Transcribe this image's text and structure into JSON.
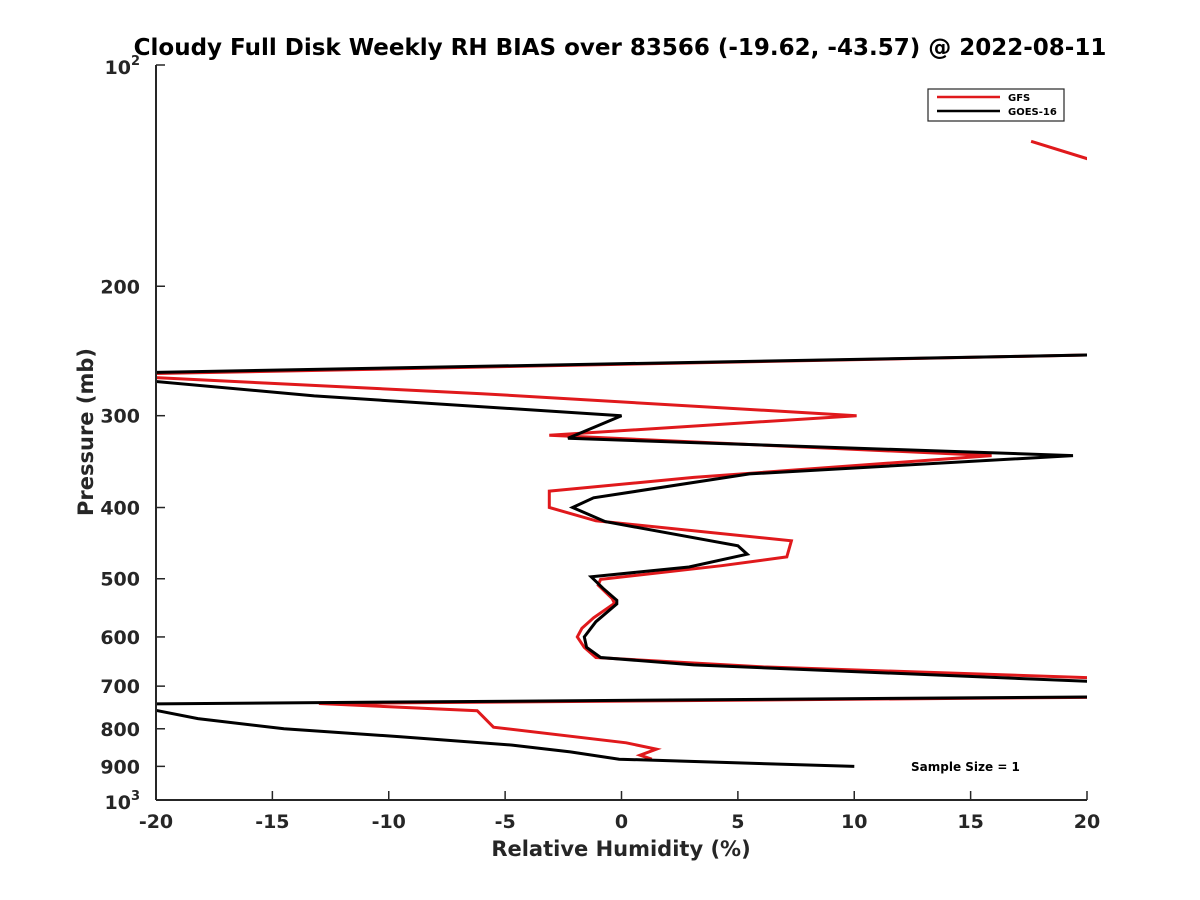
{
  "chart_data": {
    "type": "line",
    "title": "Cloudy Full Disk Weekly RH BIAS over 83566 (-19.62, -43.57) @ 2022-08-11",
    "xlabel": "Relative Humidity (%)",
    "ylabel": "Pressure (mb)",
    "xlim": [
      -20,
      20
    ],
    "ylim": [
      100,
      1000
    ],
    "y_scale": "log",
    "y_reversed": true,
    "grid": false,
    "legend_position": "top-right",
    "x_ticks": [
      -20,
      -15,
      -10,
      -5,
      0,
      5,
      10,
      15,
      20
    ],
    "x_tick_labels": [
      "-20",
      "-15",
      "-10",
      "-5",
      "0",
      "5",
      "10",
      "15",
      "20"
    ],
    "y_ticks": [
      200,
      300,
      400,
      500,
      600,
      700,
      800,
      900
    ],
    "y_tick_labels": [
      "200",
      "300",
      "400",
      "500",
      "600",
      "700",
      "800",
      "900"
    ],
    "y_end_labels": {
      "top": {
        "base": "10",
        "exp": "2"
      },
      "bottom": {
        "base": "10",
        "exp": "3"
      }
    },
    "annotation": "Sample Size = 1",
    "series": [
      {
        "name": "GFS",
        "color": "#e0191c",
        "segments": [
          [
            [
              17.6,
              127
            ],
            [
              20.3,
              135
            ]
          ],
          [
            [
              20.3,
              248
            ],
            [
              -20.3,
              263
            ],
            [
              -20.3,
              266
            ],
            [
              -6.0,
              280
            ],
            [
              10.1,
              300
            ],
            [
              -3.1,
              319
            ],
            [
              15.9,
              340
            ],
            [
              3.1,
              364
            ],
            [
              -3.1,
              380
            ],
            [
              -3.1,
              400
            ],
            [
              -1.1,
              417
            ],
            [
              7.3,
              444
            ],
            [
              7.1,
              467
            ],
            [
              4.3,
              480
            ],
            [
              -0.9,
              501
            ],
            [
              -1.0,
              510
            ],
            [
              -0.4,
              532
            ],
            [
              -0.3,
              540
            ],
            [
              -1.2,
              565
            ],
            [
              -1.7,
              584
            ],
            [
              -1.9,
              600
            ],
            [
              -1.6,
              620
            ],
            [
              -1.1,
              640
            ],
            [
              6.1,
              659
            ],
            [
              20.3,
              682
            ]
          ],
          [
            [
              20.3,
              725
            ],
            [
              -13.0,
              739
            ],
            [
              -6.2,
              756
            ],
            [
              -5.5,
              796
            ],
            [
              0.2,
              836
            ],
            [
              1.5,
              853
            ],
            [
              0.8,
              869
            ],
            [
              1.3,
              880
            ]
          ]
        ]
      },
      {
        "name": "GOES-16",
        "color": "#000000",
        "segments": [
          [
            [
              20.3,
              248
            ],
            [
              -20.3,
              262
            ]
          ],
          [
            [
              -20.3,
              269
            ],
            [
              -13.2,
              282
            ],
            [
              0.0,
              300
            ],
            [
              -2.3,
              322
            ],
            [
              19.4,
              340
            ],
            [
              5.5,
              360
            ],
            [
              -1.2,
              388
            ],
            [
              -2.1,
              400
            ],
            [
              -0.7,
              418
            ],
            [
              5.0,
              451
            ],
            [
              5.4,
              463
            ],
            [
              2.9,
              482
            ],
            [
              -1.3,
              497
            ],
            [
              -0.8,
              515
            ],
            [
              -0.2,
              535
            ],
            [
              -0.2,
              541
            ],
            [
              -1.1,
              572
            ],
            [
              -1.6,
              600
            ],
            [
              -1.5,
              620
            ],
            [
              -0.9,
              640
            ],
            [
              3.1,
              655
            ],
            [
              20.3,
              690
            ]
          ],
          [
            [
              20.3,
              724
            ],
            [
              -20.3,
              740
            ]
          ],
          [
            [
              -20.3,
              752
            ],
            [
              -18.2,
              775
            ],
            [
              -14.5,
              800
            ],
            [
              -9.5,
              820
            ],
            [
              -4.7,
              842
            ],
            [
              -2.2,
              860
            ],
            [
              -0.1,
              880
            ],
            [
              10.0,
              900
            ]
          ]
        ]
      }
    ]
  }
}
